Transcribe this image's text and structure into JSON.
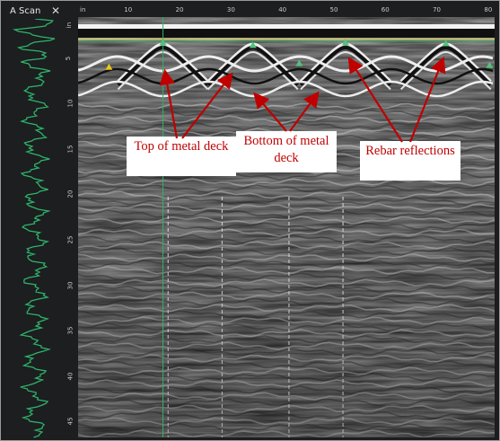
{
  "ascan": {
    "title": "A Scan",
    "close_glyph": "✕",
    "trace_color": "#2fb36a"
  },
  "horizontal_axis": {
    "unit": "in",
    "ticks": [
      "10",
      "20",
      "30",
      "40",
      "50",
      "60",
      "70",
      "80"
    ]
  },
  "vertical_axis": {
    "unit": "in",
    "ticks": [
      "5",
      "10",
      "15",
      "20",
      "25",
      "30",
      "35",
      "40",
      "45"
    ]
  },
  "cursor": {
    "color": "#2fb36a",
    "position_in": 16.5,
    "depth_in": 1.2
  },
  "targets": [
    {
      "x_in": 6,
      "depth_in": 6.0,
      "color": "#e8c51a"
    },
    {
      "x_in": 16.5,
      "depth_in": 3.3,
      "color": "#52c27b"
    },
    {
      "x_in": 34,
      "depth_in": 3.6,
      "color": "#52c27b"
    },
    {
      "x_in": 43,
      "depth_in": 5.6,
      "color": "#52c27b"
    },
    {
      "x_in": 52,
      "depth_in": 3.3,
      "color": "#52c27b"
    },
    {
      "x_in": 71.5,
      "depth_in": 3.4,
      "color": "#52c27b"
    },
    {
      "x_in": 80,
      "depth_in": 5.8,
      "color": "#52c27b"
    }
  ],
  "annotations": {
    "top_of_metal_deck": "Top of metal deck",
    "bottom_of_metal_deck": "Bottom of metal deck",
    "rebar_reflections": "Rebar reflections",
    "color": "#c00000"
  }
}
